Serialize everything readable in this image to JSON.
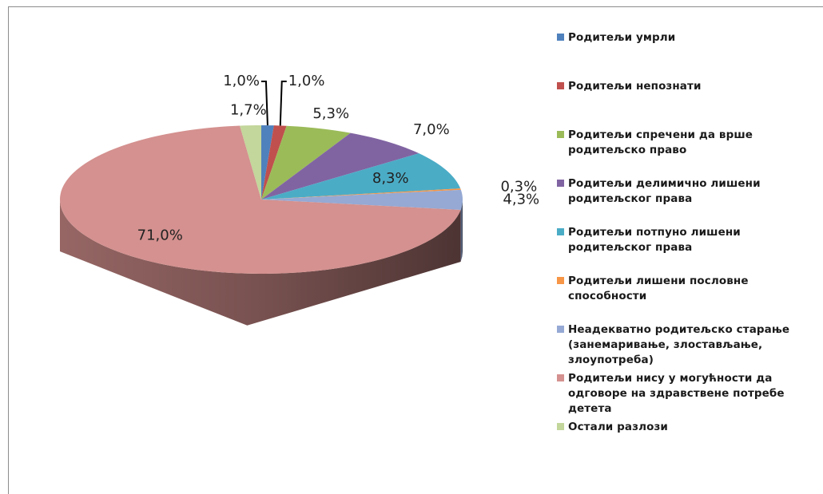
{
  "chart_data": {
    "type": "pie",
    "categories": [
      "Родитељи умрли",
      "Родитељи непознати",
      "Родитељи спречени да врше родитељско право",
      "Родитељи делимично лишени родитељског права",
      "Родитељи потпуно лишени родитељског права",
      "Родитељи лишени пословне способности",
      "Неадекватно родитељско старање (занемаривање, злостављање, злоупотреба)",
      "Родитељи нису у могућности да одговоре на здравствене потребе детета",
      "Остали разлози"
    ],
    "values": [
      1.0,
      1.0,
      5.3,
      7.0,
      8.3,
      0.3,
      4.3,
      71.0,
      1.7
    ],
    "value_labels": [
      "1,0%",
      "1,0%",
      "5,3%",
      "7,0%",
      "8,3%",
      "0,3%",
      "4,3%",
      "71,0%",
      "1,7%"
    ],
    "colors": [
      "#4f81bd",
      "#c0504d",
      "#9bbb59",
      "#8064a2",
      "#4bacc6",
      "#f79646",
      "#95a9d4",
      "#d4918f",
      "#c3d69b"
    ],
    "legend": "right"
  }
}
